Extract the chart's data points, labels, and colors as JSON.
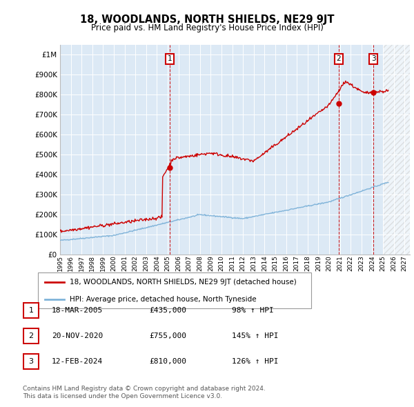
{
  "title": "18, WOODLANDS, NORTH SHIELDS, NE29 9JT",
  "subtitle": "Price paid vs. HM Land Registry's House Price Index (HPI)",
  "ytick_values": [
    0,
    100000,
    200000,
    300000,
    400000,
    500000,
    600000,
    700000,
    800000,
    900000,
    1000000
  ],
  "ylim": [
    0,
    1050000
  ],
  "xlim_start": 1995.0,
  "xlim_end": 2027.5,
  "plot_bg_color": "#dce9f5",
  "hatch_region_start": 2025.0,
  "hatch_region_end": 2027.5,
  "grid_color": "#ffffff",
  "sale_dates": [
    2005.21,
    2020.89,
    2024.12
  ],
  "sale_prices": [
    435000,
    755000,
    810000
  ],
  "sale_labels": [
    "1",
    "2",
    "3"
  ],
  "sale_box_color": "#cc0000",
  "hpi_line_color": "#7fb3d9",
  "price_line_color": "#cc0000",
  "legend_entries": [
    "18, WOODLANDS, NORTH SHIELDS, NE29 9JT (detached house)",
    "HPI: Average price, detached house, North Tyneside"
  ],
  "table_rows": [
    [
      "1",
      "18-MAR-2005",
      "£435,000",
      "98% ↑ HPI"
    ],
    [
      "2",
      "20-NOV-2020",
      "£755,000",
      "145% ↑ HPI"
    ],
    [
      "3",
      "12-FEB-2024",
      "£810,000",
      "126% ↑ HPI"
    ]
  ],
  "footer_text": "Contains HM Land Registry data © Crown copyright and database right 2024.\nThis data is licensed under the Open Government Licence v3.0.",
  "xtick_years": [
    1995,
    1996,
    1997,
    1998,
    1999,
    2000,
    2001,
    2002,
    2003,
    2004,
    2005,
    2006,
    2007,
    2008,
    2009,
    2010,
    2011,
    2012,
    2013,
    2014,
    2015,
    2016,
    2017,
    2018,
    2019,
    2020,
    2021,
    2022,
    2023,
    2024,
    2025,
    2026,
    2027
  ]
}
